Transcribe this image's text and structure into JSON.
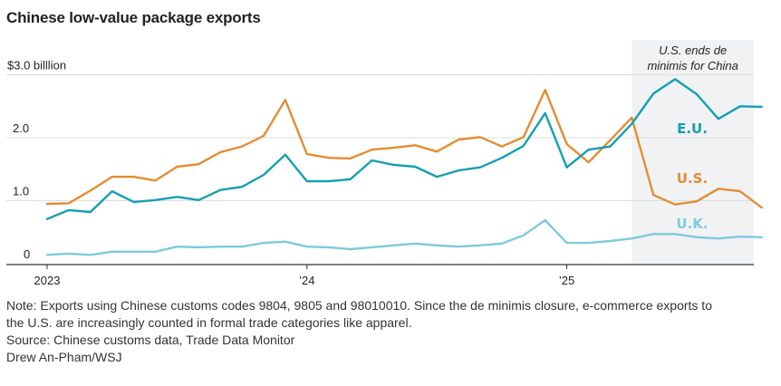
{
  "title": "Chinese low-value package exports",
  "annotation": {
    "line1": "U.S. ends de",
    "line2": "minimis for China",
    "start": "2025-04",
    "end": "2025-10"
  },
  "notes": {
    "note_line1": "Note: Exports using Chinese customs codes 9804, 9805 and 98010010. Since the de minimis closure, e-commerce exports to",
    "note_line2": "the U.S. are increasingly counted in formal trade categories like apparel.",
    "source": "Source: Chinese customs data, Trade Data Monitor",
    "credit": "Drew An-Pham/WSJ"
  },
  "colors": {
    "eu": "#139FB4",
    "us": "#E48D32",
    "uk": "#7FCADB",
    "shade": "#F1F2F4",
    "grid": "#DDDDDD",
    "axis": "#333333"
  },
  "chart_data": {
    "type": "line",
    "title": "Chinese low-value package exports",
    "xlabel": "",
    "ylabel": "$ billion",
    "ylim": [
      0,
      3.0
    ],
    "yticks": [
      {
        "value": 0,
        "label": "0"
      },
      {
        "value": 1.0,
        "label": "1.0"
      },
      {
        "value": 2.0,
        "label": "2.0"
      },
      {
        "value": 3.0,
        "label": "$3.0 billlion"
      }
    ],
    "xticks": [
      {
        "index": 0,
        "label": "2023"
      },
      {
        "index": 12,
        "label": "’24"
      },
      {
        "index": 24,
        "label": "’25"
      }
    ],
    "grid": true,
    "x": [
      "2023-01",
      "2023-02",
      "2023-03",
      "2023-04",
      "2023-05",
      "2023-06",
      "2023-07",
      "2023-08",
      "2023-09",
      "2023-10",
      "2023-11",
      "2023-12",
      "2024-01",
      "2024-02",
      "2024-03",
      "2024-04",
      "2024-05",
      "2024-06",
      "2024-07",
      "2024-08",
      "2024-09",
      "2024-10",
      "2024-11",
      "2024-12",
      "2025-01",
      "2025-02",
      "2025-03",
      "2025-04",
      "2025-05",
      "2025-06",
      "2025-07",
      "2025-08",
      "2025-09",
      "2025-10"
    ],
    "series": [
      {
        "key": "eu",
        "name": "E.U.",
        "values": [
          0.71,
          0.85,
          0.82,
          1.15,
          0.98,
          1.01,
          1.06,
          1.01,
          1.17,
          1.22,
          1.41,
          1.73,
          1.31,
          1.31,
          1.34,
          1.64,
          1.57,
          1.54,
          1.38,
          1.48,
          1.53,
          1.68,
          1.87,
          2.39,
          1.53,
          1.81,
          1.86,
          2.22,
          2.7,
          2.93,
          2.69,
          2.3,
          2.5,
          2.49
        ]
      },
      {
        "key": "us",
        "name": "U.S.",
        "values": [
          0.95,
          0.96,
          1.16,
          1.38,
          1.38,
          1.32,
          1.54,
          1.58,
          1.77,
          1.86,
          2.03,
          2.6,
          1.74,
          1.68,
          1.67,
          1.81,
          1.84,
          1.88,
          1.78,
          1.97,
          2.01,
          1.86,
          2.01,
          2.76,
          1.9,
          1.61,
          1.96,
          2.32,
          1.09,
          0.94,
          0.99,
          1.19,
          1.15,
          0.89
        ]
      },
      {
        "key": "uk",
        "name": "U.K.",
        "values": [
          0.14,
          0.16,
          0.14,
          0.19,
          0.19,
          0.19,
          0.27,
          0.26,
          0.27,
          0.27,
          0.33,
          0.35,
          0.27,
          0.26,
          0.23,
          0.26,
          0.29,
          0.32,
          0.29,
          0.27,
          0.29,
          0.32,
          0.45,
          0.69,
          0.33,
          0.33,
          0.36,
          0.4,
          0.47,
          0.47,
          0.42,
          0.4,
          0.43,
          0.42
        ]
      }
    ],
    "legend": "inline-right"
  }
}
